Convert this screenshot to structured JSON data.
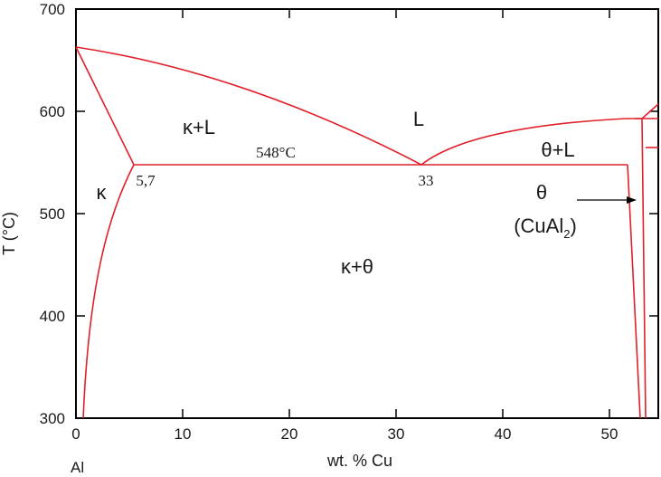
{
  "chart_data": {
    "type": "line",
    "xlabel": "wt. % Cu",
    "ylabel": "T (°C)",
    "xlim": [
      0,
      55
    ],
    "ylim": [
      300,
      700
    ],
    "x_ticks": [
      "0",
      "10",
      "20",
      "30",
      "40",
      "50"
    ],
    "y_ticks": [
      "300",
      "400",
      "500",
      "600",
      "700"
    ],
    "grid": false,
    "origin_label": "Al",
    "eutectic_temperature": "548°C",
    "eutectic_composition": "33",
    "max_solubility": "5,7",
    "regions": {
      "liquid": "L",
      "kappa_liquid": "κ+L",
      "theta_liquid": "θ+L",
      "kappa": "κ",
      "kappa_theta": "κ+θ",
      "theta": "θ",
      "theta_formula_main": "(CuAl",
      "theta_formula_sub": "2",
      "theta_formula_close": ")"
    },
    "series": [
      {
        "values_x": [
          0,
          32.5
        ],
        "values_y": [
          661,
          548
        ]
      },
      {
        "values_x": [
          32.5,
          52.5
        ],
        "values_y": [
          548,
          592
        ]
      },
      {
        "values_x": [
          0,
          5.7
        ],
        "values_y": [
          661,
          548
        ]
      },
      {
        "values_x": [
          5.7,
          51.5
        ],
        "values_y": [
          548,
          548
        ]
      },
      {
        "values_x": [
          0.9,
          5.7
        ],
        "values_y": [
          300,
          548
        ]
      },
      {
        "values_x": [
          51.5,
          52.7
        ],
        "values_y": [
          548,
          300
        ]
      },
      {
        "values_x": [
          52.7,
          53.2
        ],
        "values_y": [
          592,
          300
        ]
      },
      {
        "values_x": [
          53.5,
          53.5
        ],
        "values_y": [
          563,
          300
        ]
      },
      {
        "values_x": [
          53.5,
          55
        ],
        "values_y": [
          563,
          563
        ]
      },
      {
        "values_x": [
          52.5,
          55
        ],
        "values_y": [
          592,
          608
        ]
      }
    ]
  },
  "colors": {
    "curve": "#e0202b",
    "axis": "#000000",
    "text": "#1a1a1a"
  }
}
